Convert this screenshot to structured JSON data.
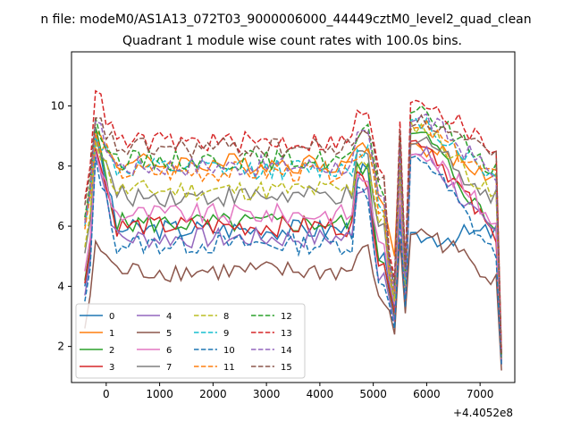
{
  "figure": {
    "suptitle": "n file: modeM0/AS1A13_072T03_9000006000_44449cztM0_level2_quad_clean",
    "offset_label": "+4.4052e8"
  },
  "chart_data": {
    "type": "line",
    "title": "Quadrant 1 module wise count rates with 100.0s bins.",
    "xlabel": "",
    "ylabel": "",
    "x_offset": 440520000,
    "xlim": [
      -650,
      7650
    ],
    "ylim": [
      0.8,
      11.8
    ],
    "x_ticks": [
      0,
      1000,
      2000,
      3000,
      4000,
      5000,
      6000,
      7000
    ],
    "y_ticks": [
      2,
      4,
      6,
      8,
      10
    ],
    "grid": false,
    "legend": {
      "placement": "lower-left",
      "columns": 4
    },
    "series": [
      {
        "name": "0",
        "color": "#1f77b4",
        "dash": "solid",
        "base": 5.9,
        "peak": 9.0,
        "end": 5.8,
        "dipA": 3.3,
        "dipB": 3.0,
        "mid": 5.6,
        "tail": 1.5
      },
      {
        "name": "1",
        "color": "#ff7f0e",
        "dash": "solid",
        "base": 8.1,
        "peak": 9.2,
        "end": 7.7,
        "dipA": 5.0,
        "dipB": 3.8,
        "mid": 8.6,
        "tail": 1.6
      },
      {
        "name": "2",
        "color": "#2ca02c",
        "dash": "solid",
        "base": 6.1,
        "peak": 9.3,
        "end": 6.0,
        "dipA": 3.0,
        "dipB": 2.8,
        "mid": 9.0,
        "tail": 1.6
      },
      {
        "name": "3",
        "color": "#d62728",
        "dash": "solid",
        "base": 6.0,
        "peak": 8.6,
        "end": 5.8,
        "dipA": 3.1,
        "dipB": 3.0,
        "mid": 8.8,
        "tail": 1.5
      },
      {
        "name": "4",
        "color": "#9467bd",
        "dash": "solid",
        "base": 5.6,
        "peak": 8.5,
        "end": 5.7,
        "dipA": 2.8,
        "dipB": 2.6,
        "mid": 8.4,
        "tail": 1.4
      },
      {
        "name": "5",
        "color": "#8c564b",
        "dash": "solid",
        "base": 4.5,
        "peak": 5.5,
        "end": 4.4,
        "dipA": 2.4,
        "dipB": 2.5,
        "mid": 5.8,
        "tail": 1.2
      },
      {
        "name": "6",
        "color": "#e377c2",
        "dash": "solid",
        "base": 6.4,
        "peak": 8.4,
        "end": 6.3,
        "dipA": 3.4,
        "dipB": 3.2,
        "mid": 8.5,
        "tail": 1.5
      },
      {
        "name": "7",
        "color": "#7f7f7f",
        "dash": "solid",
        "base": 7.0,
        "peak": 9.0,
        "end": 6.9,
        "dipA": 3.6,
        "dipB": 3.4,
        "mid": 8.9,
        "tail": 1.6
      },
      {
        "name": "8",
        "color": "#bcbd22",
        "dash": "dashed",
        "base": 7.2,
        "peak": 8.8,
        "end": 7.0,
        "dipA": 3.5,
        "dipB": 3.3,
        "mid": 9.3,
        "tail": 1.6
      },
      {
        "name": "9",
        "color": "#17becf",
        "dash": "dashed",
        "base": 7.9,
        "peak": 9.0,
        "end": 7.7,
        "dipA": 3.8,
        "dipB": 3.6,
        "mid": 9.4,
        "tail": 1.7
      },
      {
        "name": "10",
        "color": "#1f77b4",
        "dash": "dashed",
        "base": 5.4,
        "peak": 8.3,
        "end": 5.2,
        "dipA": 2.6,
        "dipB": 2.7,
        "mid": 8.2,
        "tail": 1.4
      },
      {
        "name": "11",
        "color": "#ff7f0e",
        "dash": "dashed",
        "base": 7.8,
        "peak": 9.1,
        "end": 7.6,
        "dipA": 3.8,
        "dipB": 3.7,
        "mid": 9.2,
        "tail": 1.7
      },
      {
        "name": "12",
        "color": "#2ca02c",
        "dash": "dashed",
        "base": 8.2,
        "peak": 9.6,
        "end": 8.0,
        "dipA": 4.0,
        "dipB": 3.9,
        "mid": 9.8,
        "tail": 1.7
      },
      {
        "name": "13",
        "color": "#d62728",
        "dash": "dashed",
        "base": 8.8,
        "peak": 10.5,
        "end": 8.6,
        "dipA": 4.3,
        "dipB": 4.2,
        "mid": 10.2,
        "tail": 1.8
      },
      {
        "name": "14",
        "color": "#9467bd",
        "dash": "dashed",
        "base": 8.0,
        "peak": 9.5,
        "end": 7.8,
        "dipA": 3.9,
        "dipB": 3.7,
        "mid": 9.6,
        "tail": 1.7
      },
      {
        "name": "15",
        "color": "#8c564b",
        "dash": "dashed",
        "base": 8.6,
        "peak": 9.6,
        "end": 8.3,
        "dipA": 4.1,
        "dipB": 4.0,
        "mid": 9.5,
        "tail": 1.7
      }
    ]
  }
}
